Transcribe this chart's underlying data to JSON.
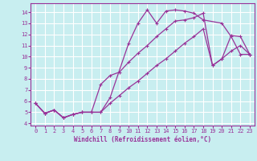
{
  "xlabel": "Windchill (Refroidissement éolien,°C)",
  "bg_color": "#c8eef0",
  "grid_color": "#ffffff",
  "line_color": "#993399",
  "xlim": [
    -0.5,
    23.5
  ],
  "ylim": [
    3.8,
    14.8
  ],
  "xticks": [
    0,
    1,
    2,
    3,
    4,
    5,
    6,
    7,
    8,
    9,
    10,
    11,
    12,
    13,
    14,
    15,
    16,
    17,
    18,
    19,
    20,
    21,
    22,
    23
  ],
  "yticks": [
    4,
    5,
    6,
    7,
    8,
    9,
    10,
    11,
    12,
    13,
    14
  ],
  "line1_x": [
    0,
    1,
    2,
    3,
    4,
    5,
    6,
    7,
    8,
    10,
    11,
    12,
    13,
    14,
    15,
    16,
    17,
    18,
    20,
    21,
    22,
    23
  ],
  "line1_y": [
    5.8,
    4.9,
    5.2,
    4.5,
    4.8,
    5.0,
    5.0,
    5.0,
    6.3,
    11.2,
    13.0,
    14.2,
    13.0,
    14.1,
    14.2,
    14.1,
    13.9,
    13.3,
    13.0,
    11.8,
    10.2,
    10.2
  ],
  "line2_x": [
    0,
    1,
    2,
    3,
    4,
    5,
    6,
    7,
    8,
    9,
    10,
    11,
    12,
    13,
    14,
    15,
    16,
    17,
    18,
    19,
    20,
    21,
    22,
    23
  ],
  "line2_y": [
    5.8,
    4.9,
    5.2,
    4.5,
    4.8,
    5.0,
    5.0,
    7.5,
    8.3,
    8.6,
    9.5,
    10.3,
    11.0,
    11.8,
    12.5,
    13.2,
    13.3,
    13.5,
    13.9,
    9.2,
    9.8,
    11.9,
    11.8,
    10.2
  ],
  "line3_x": [
    0,
    1,
    2,
    3,
    4,
    5,
    6,
    7,
    8,
    9,
    10,
    11,
    12,
    13,
    14,
    15,
    16,
    17,
    18,
    19,
    20,
    21,
    22,
    23
  ],
  "line3_y": [
    5.8,
    4.9,
    5.2,
    4.5,
    4.8,
    5.0,
    5.0,
    5.0,
    5.8,
    6.5,
    7.2,
    7.8,
    8.5,
    9.2,
    9.8,
    10.5,
    11.2,
    11.8,
    12.5,
    9.2,
    9.8,
    10.5,
    11.0,
    10.2
  ]
}
